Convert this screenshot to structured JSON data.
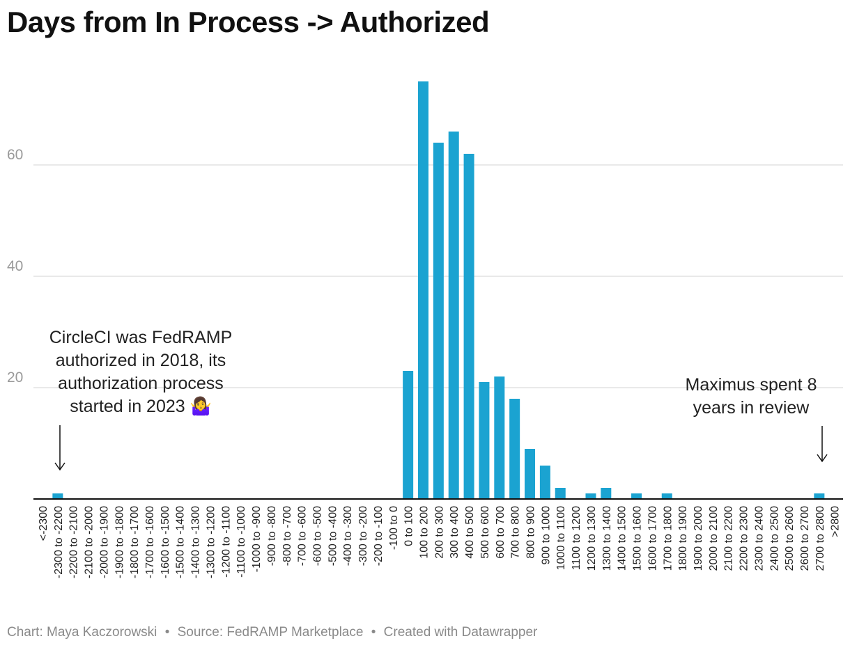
{
  "title": "Days from In Process -> Authorized",
  "footer": {
    "chart_by": "Chart: Maya Kaczorowski",
    "source": "Source: FedRAMP Marketplace",
    "tool": "Created with Datawrapper",
    "separator": "•"
  },
  "annotations": {
    "left": "CircleCI was FedRAMP authorized in 2018, its authorization process started in 2023 🤷‍♀️",
    "right": "Maximus spent 8 years in review"
  },
  "colors": {
    "bar": "#1ba3d1",
    "grid": "#e2e2e2",
    "axis_text": "#9a9a9a",
    "baseline": "#111111"
  },
  "chart_data": {
    "type": "bar",
    "title": "Days from In Process -> Authorized",
    "xlabel": "",
    "ylabel": "",
    "ylim": [
      0,
      75
    ],
    "yticks": [
      20,
      40,
      60
    ],
    "grid": true,
    "categories": [
      "<-2300",
      "-2300 to -2200",
      "-2200 to -2100",
      "-2100 to -2000",
      "-2000 to -1900",
      "-1900 to -1800",
      "-1800 to -1700",
      "-1700 to -1600",
      "-1600 to -1500",
      "-1500 to -1400",
      "-1400 to -1300",
      "-1300 to -1200",
      "-1200 to -1100",
      "-1100 to -1000",
      "-1000 to -900",
      "-900 to -800",
      "-800 to -700",
      "-700 to -600",
      "-600 to -500",
      "-500 to -400",
      "-400 to -300",
      "-300 to -200",
      "-200 to -100",
      "-100 to 0",
      "0 to 100",
      "100 to 200",
      "200 to 300",
      "300 to 400",
      "400 to 500",
      "500 to 600",
      "600 to 700",
      "700 to 800",
      "800 to 900",
      "900 to 1000",
      "1000 to 1100",
      "1100 to 1200",
      "1200 to 1300",
      "1300 to 1400",
      "1400 to 1500",
      "1500 to 1600",
      "1600 to 1700",
      "1700 to 1800",
      "1800 to 1900",
      "1900 to 2000",
      "2000 to 2100",
      "2100 to 2200",
      "2200 to 2300",
      "2300 to 2400",
      "2400 to 2500",
      "2500 to 2600",
      "2600 to 2700",
      "2700 to 2800",
      ">2800"
    ],
    "values": [
      0,
      1,
      0,
      0,
      0,
      0,
      0,
      0,
      0,
      0,
      0,
      0,
      0,
      0,
      0,
      0,
      0,
      0,
      0,
      0,
      0,
      0,
      0,
      0,
      23,
      75,
      64,
      66,
      62,
      21,
      22,
      18,
      9,
      6,
      2,
      0,
      1,
      2,
      0,
      1,
      0,
      1,
      0,
      0,
      0,
      0,
      0,
      0,
      0,
      0,
      0,
      1,
      0
    ]
  }
}
